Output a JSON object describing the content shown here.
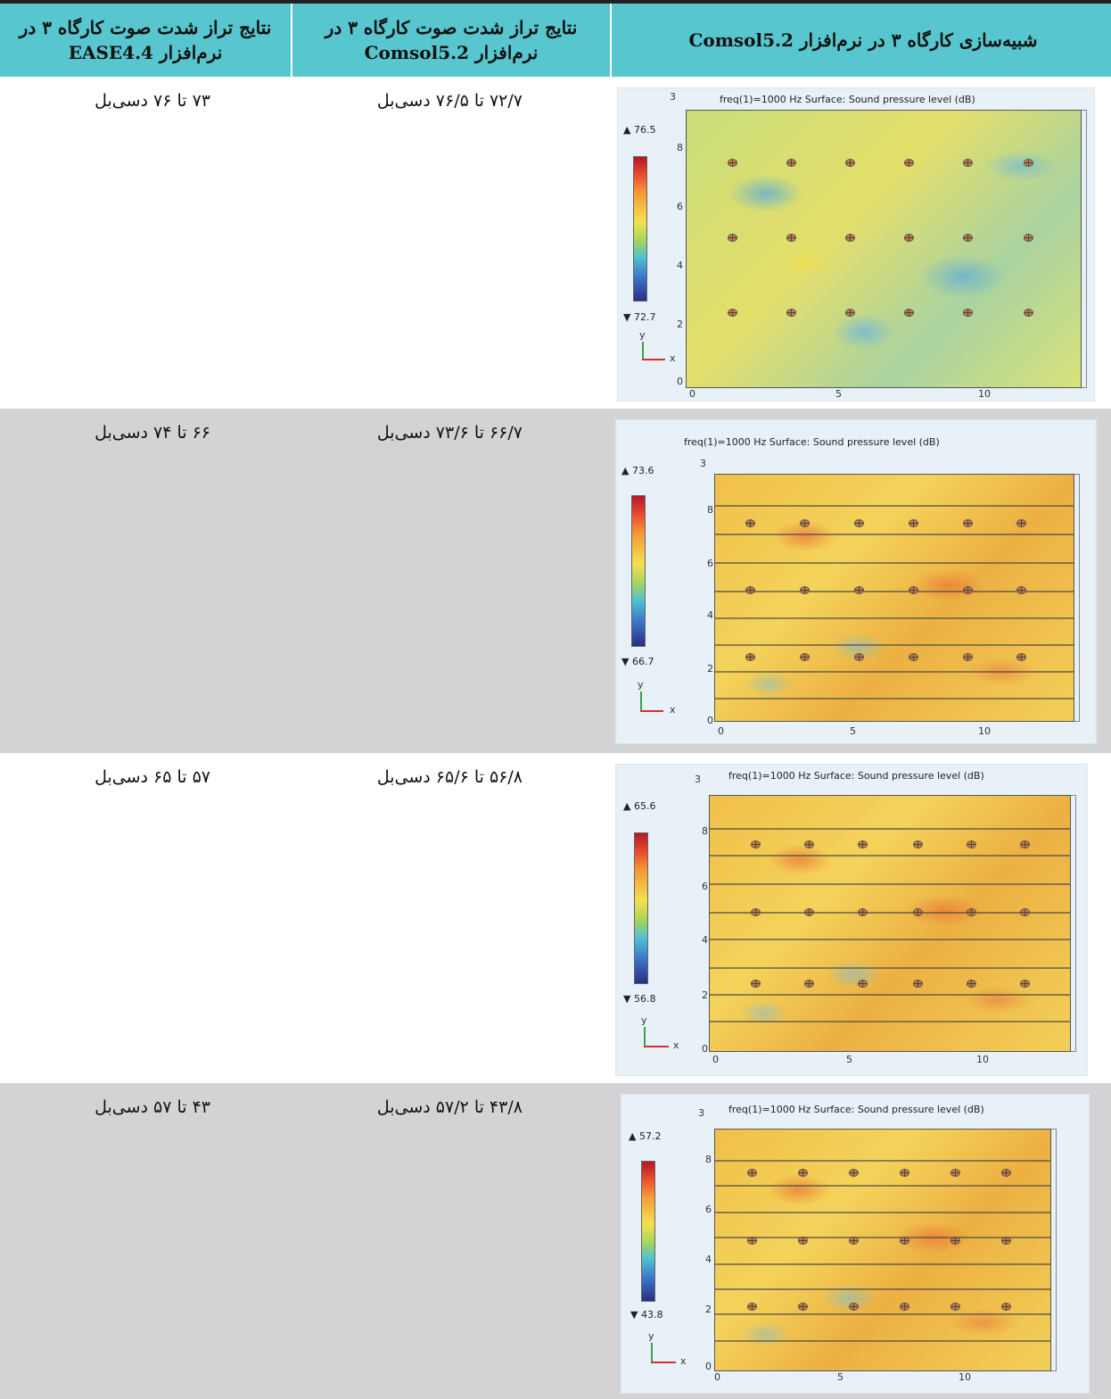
{
  "header": {
    "col1": "شبیه‌سازی کارگاه ۳ در نرم‌افزار Comsol5.2",
    "col2": "نتایج تراز شدت صوت کارگاه ۳ در نرم‌افزار Comsol5.2",
    "col3": "نتایج تراز شدت صوت کارگاه ۳ در نرم‌افزار EASE4.4"
  },
  "rows": [
    {
      "comsol": "۷۲/۷  تا ۷۶/۵ دسی‌بل",
      "ease": "۷۳ تا ۷۶ دسی‌بل",
      "plot": {
        "title": "freq(1)=1000 Hz   Surface: Sound pressure level (dB)",
        "max": "▲ 76.5",
        "min": "▼ 72.7"
      }
    },
    {
      "comsol": "۶۶/۷ تا ۷۳/۶ دسی‌بل",
      "ease": "۶۶ تا ۷۴ دسی‌بل",
      "plot": {
        "title": "freq(1)=1000 Hz   Surface: Sound pressure level (dB)",
        "max": "▲ 73.6",
        "min": "▼ 66.7"
      }
    },
    {
      "comsol": "۵۶/۸ تا ۶۵/۶ دسی‌بل",
      "ease": "۵۷ تا ۶۵ دسی‌بل",
      "plot": {
        "title": "freq(1)=1000 Hz   Surface: Sound pressure level (dB)",
        "max": "▲ 65.6",
        "min": "▼ 56.8"
      }
    },
    {
      "comsol": "۴۳/۸ تا ۵۷/۲ دسی‌بل",
      "ease": "۴۳ تا ۵۷ دسی‌بل",
      "plot": {
        "title": "freq(1)=1000 Hz   Surface: Sound pressure level (dB)",
        "max": "▲ 57.2",
        "min": "▼ 43.8"
      }
    }
  ],
  "axis": {
    "y_ticks": [
      "8",
      "6",
      "4",
      "2",
      "0"
    ],
    "x_ticks": [
      "0",
      "5",
      "10"
    ],
    "z_tick": "3",
    "x_label": "x",
    "y_label": "y"
  }
}
